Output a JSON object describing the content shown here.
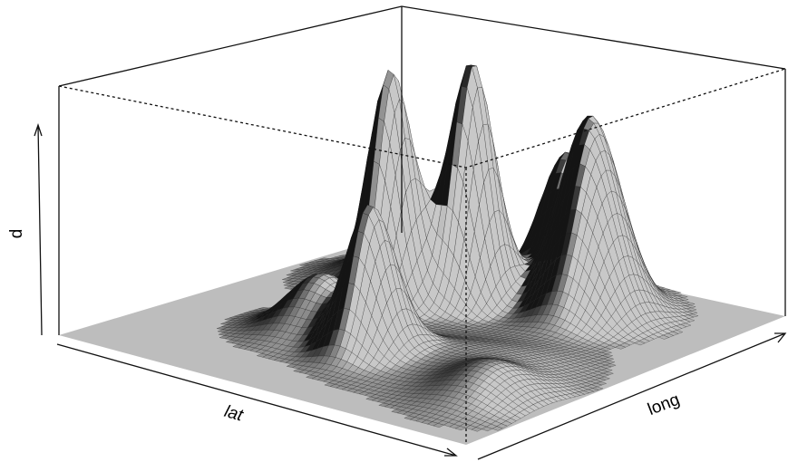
{
  "chart_data": {
    "type": "surface",
    "title": "",
    "xlabel": "lat",
    "ylabel": "long",
    "zlabel": "d",
    "ticks": false,
    "grid": false,
    "colors": {
      "surface": "#bdbdbd",
      "mesh": "#1a1a1a",
      "peak": "#2a2a2a",
      "box": "#111111"
    },
    "peaks": [
      {
        "u": 0.32,
        "v": 0.6,
        "height": 0.69,
        "width": 0.045
      },
      {
        "u": 0.44,
        "v": 0.7,
        "height": 0.46,
        "width": 0.045
      },
      {
        "u": 0.23,
        "v": 0.72,
        "height": 0.13,
        "width": 0.08
      },
      {
        "u": 0.35,
        "v": 0.36,
        "height": 0.18,
        "width": 0.07
      },
      {
        "u": 0.43,
        "v": 0.72,
        "height": 0.29,
        "width": 0.05
      },
      {
        "u": 0.5,
        "v": 0.92,
        "height": 0.39,
        "width": 0.055
      },
      {
        "u": 0.52,
        "v": 0.3,
        "height": 0.43,
        "width": 0.05
      },
      {
        "u": 0.63,
        "v": 0.83,
        "height": 0.42,
        "width": 0.06
      },
      {
        "u": 0.7,
        "v": 0.77,
        "height": 0.35,
        "width": 0.065
      },
      {
        "u": 0.86,
        "v": 0.25,
        "height": 0.1,
        "width": 0.08
      },
      {
        "u": 0.62,
        "v": 0.33,
        "height": 0.05,
        "width": 0.1
      },
      {
        "u": 0.76,
        "v": 0.43,
        "height": 0.03,
        "width": 0.1
      }
    ]
  }
}
